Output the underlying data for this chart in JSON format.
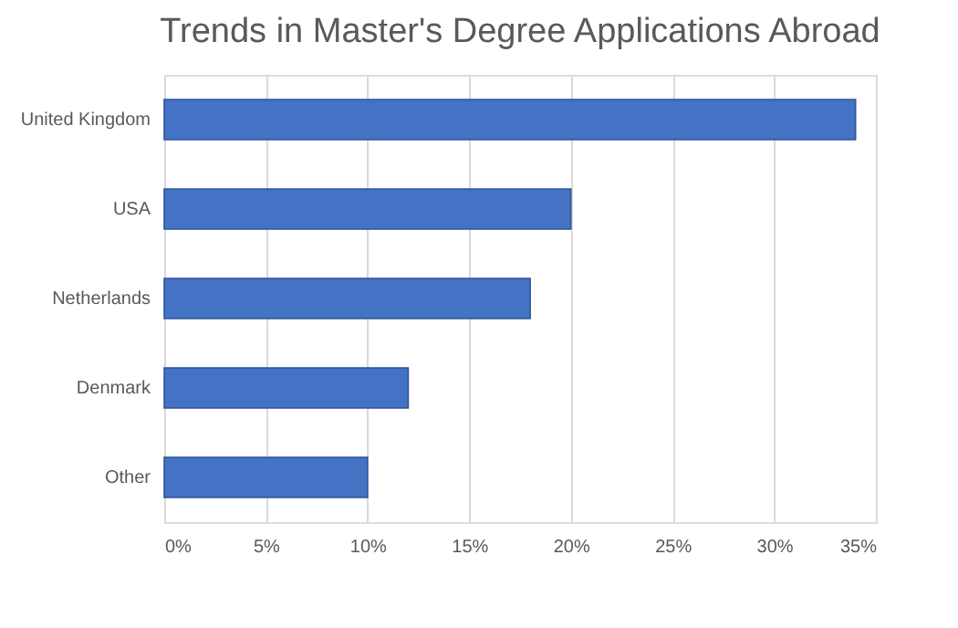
{
  "chart_data": {
    "type": "bar",
    "orientation": "horizontal",
    "title": "Trends in Master's Degree Applications Abroad",
    "categories": [
      "United Kingdom",
      "USA",
      "Netherlands",
      "Denmark",
      "Other"
    ],
    "values": [
      34,
      20,
      18,
      12,
      10
    ],
    "color": "#4472c4",
    "xlim": [
      0,
      35
    ],
    "xticks": [
      {
        "value": 0,
        "label": "0%"
      },
      {
        "value": 5,
        "label": "5%"
      },
      {
        "value": 10,
        "label": "10%"
      },
      {
        "value": 15,
        "label": "15%"
      },
      {
        "value": 20,
        "label": "20%"
      },
      {
        "value": 25,
        "label": "25%"
      },
      {
        "value": 30,
        "label": "30%"
      },
      {
        "value": 35,
        "label": "35%"
      }
    ],
    "grid": "x"
  }
}
